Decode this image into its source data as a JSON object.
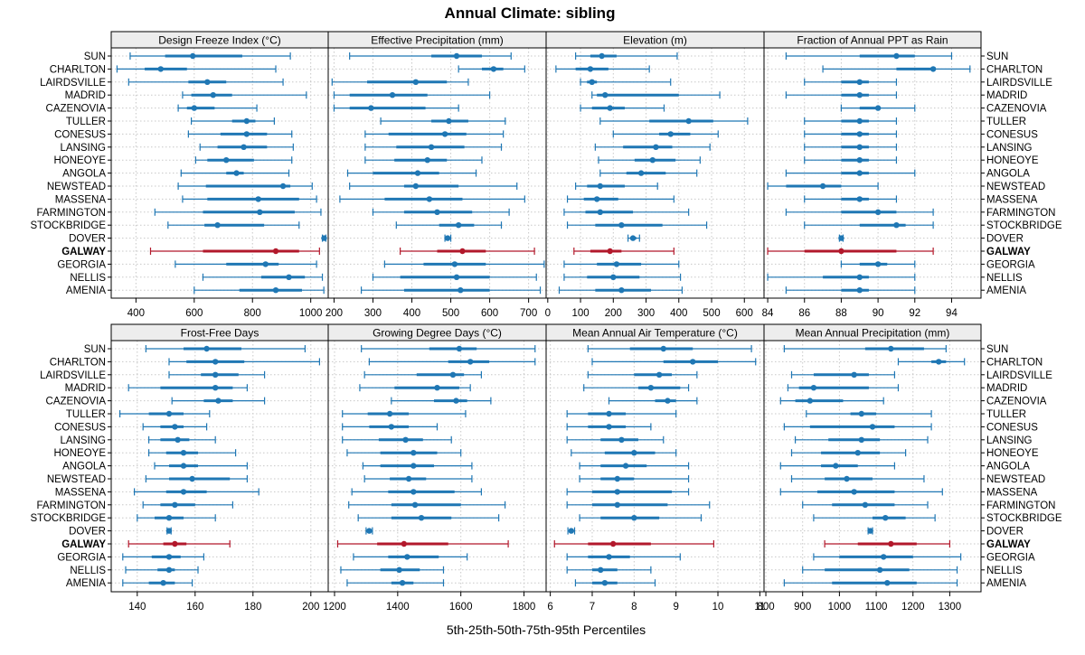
{
  "title": "Annual Climate: sibling",
  "xlabel": "5th-25th-50th-75th-95th Percentiles",
  "colors": {
    "normal": "#1f77b4",
    "highlight": "#b2182b",
    "strip": "#ededed",
    "grid": "#c8c8c8"
  },
  "highlight_site": "GALWAY",
  "sites": [
    "SUN",
    "CHARLTON",
    "LAIRDSVILLE",
    "MADRID",
    "CAZENOVIA",
    "TULLER",
    "CONESUS",
    "LANSING",
    "HONEOYE",
    "ANGOLA",
    "NEWSTEAD",
    "MASSENA",
    "FARMINGTON",
    "STOCKBRIDGE",
    "DOVER",
    "GALWAY",
    "GEORGIA",
    "NELLIS",
    "AMENIA"
  ],
  "chart_data": [
    {
      "type": "boxplot-percentiles",
      "title": "Design Freeze Index (°C)",
      "xlim": [
        315,
        1060
      ],
      "ticks": [
        400,
        600,
        800,
        1000
      ],
      "values": [
        [
          380,
          500,
          595,
          765,
          930
        ],
        [
          335,
          430,
          485,
          575,
          880
        ],
        [
          375,
          580,
          645,
          710,
          905
        ],
        [
          560,
          590,
          665,
          730,
          985
        ],
        [
          545,
          575,
          600,
          670,
          815
        ],
        [
          590,
          730,
          780,
          810,
          875
        ],
        [
          580,
          690,
          780,
          850,
          935
        ],
        [
          620,
          680,
          770,
          850,
          940
        ],
        [
          605,
          645,
          710,
          805,
          935
        ],
        [
          555,
          710,
          745,
          770,
          925
        ],
        [
          545,
          640,
          905,
          930,
          1005
        ],
        [
          560,
          645,
          820,
          960,
          1020
        ],
        [
          465,
          630,
          825,
          945,
          1035
        ],
        [
          510,
          635,
          680,
          840,
          960
        ],
        [
          1040,
          1043,
          1046,
          1049,
          1052
        ],
        [
          450,
          630,
          880,
          960,
          1030
        ],
        [
          535,
          710,
          845,
          890,
          1020
        ],
        [
          630,
          830,
          925,
          980,
          1040
        ],
        [
          600,
          755,
          880,
          970,
          1045
        ]
      ]
    },
    {
      "type": "boxplot-percentiles",
      "title": "Effective Precipitation (mm)",
      "xlim": [
        185,
        745
      ],
      "ticks": [
        200,
        300,
        400,
        500,
        600,
        700
      ],
      "values": [
        [
          240,
          450,
          515,
          580,
          655
        ],
        [
          520,
          580,
          610,
          635,
          690
        ],
        [
          195,
          285,
          410,
          490,
          545
        ],
        [
          200,
          240,
          350,
          440,
          600
        ],
        [
          200,
          240,
          295,
          435,
          520
        ],
        [
          320,
          450,
          495,
          545,
          640
        ],
        [
          280,
          340,
          485,
          540,
          635
        ],
        [
          280,
          360,
          450,
          535,
          630
        ],
        [
          280,
          355,
          440,
          490,
          580
        ],
        [
          235,
          300,
          415,
          470,
          565
        ],
        [
          240,
          380,
          410,
          520,
          670
        ],
        [
          215,
          330,
          445,
          530,
          690
        ],
        [
          300,
          380,
          465,
          555,
          650
        ],
        [
          360,
          470,
          520,
          560,
          630
        ],
        [
          485,
          488,
          492,
          496,
          500
        ],
        [
          370,
          465,
          530,
          590,
          715
        ],
        [
          330,
          430,
          510,
          590,
          740
        ],
        [
          300,
          370,
          515,
          600,
          720
        ],
        [
          270,
          380,
          525,
          600,
          730
        ]
      ]
    },
    {
      "type": "boxplot-percentiles",
      "title": "Elevation (m)",
      "xlim": [
        -5,
        660
      ],
      "ticks": [
        0,
        100,
        200,
        300,
        400,
        500,
        600
      ],
      "values": [
        [
          85,
          130,
          165,
          210,
          395
        ],
        [
          25,
          85,
          130,
          185,
          310
        ],
        [
          100,
          120,
          135,
          150,
          375
        ],
        [
          135,
          150,
          175,
          400,
          525
        ],
        [
          100,
          135,
          190,
          235,
          355
        ],
        [
          160,
          310,
          430,
          505,
          610
        ],
        [
          200,
          340,
          375,
          435,
          520
        ],
        [
          145,
          230,
          330,
          380,
          495
        ],
        [
          155,
          265,
          320,
          390,
          465
        ],
        [
          160,
          240,
          285,
          360,
          455
        ],
        [
          85,
          120,
          160,
          235,
          335
        ],
        [
          60,
          110,
          150,
          215,
          385
        ],
        [
          50,
          115,
          160,
          260,
          430
        ],
        [
          60,
          145,
          225,
          350,
          485
        ],
        [
          245,
          252,
          260,
          270,
          280
        ],
        [
          80,
          130,
          190,
          225,
          385
        ],
        [
          50,
          150,
          210,
          285,
          400
        ],
        [
          50,
          120,
          200,
          280,
          405
        ],
        [
          35,
          145,
          225,
          315,
          410
        ]
      ]
    },
    {
      "type": "boxplot-percentiles",
      "title": "Fraction of Annual PPT as Rain",
      "xlim": [
        83.8,
        95.6
      ],
      "ticks": [
        84,
        86,
        88,
        90,
        92,
        94
      ],
      "values": [
        [
          85,
          89,
          91,
          92,
          94
        ],
        [
          87,
          91,
          93,
          93,
          95
        ],
        [
          86,
          88,
          89,
          89.5,
          91
        ],
        [
          85,
          88,
          89,
          89.5,
          91
        ],
        [
          88,
          89,
          90,
          90,
          92
        ],
        [
          86,
          88,
          89,
          89.5,
          91
        ],
        [
          86,
          88,
          89,
          89.5,
          91
        ],
        [
          86,
          88,
          89,
          89.5,
          91
        ],
        [
          86,
          88,
          89,
          89.5,
          91
        ],
        [
          85,
          88,
          89,
          89.5,
          92
        ],
        [
          84,
          85,
          87,
          88,
          90
        ],
        [
          86,
          88,
          89,
          89.5,
          91
        ],
        [
          85,
          88,
          90,
          91,
          93
        ],
        [
          86,
          89,
          91,
          91.5,
          93
        ],
        [
          87.9,
          87.95,
          88,
          88.05,
          88.1
        ],
        [
          84,
          86,
          88,
          91,
          93
        ],
        [
          88,
          89,
          90,
          90.5,
          92
        ],
        [
          84,
          87,
          89,
          89.5,
          92
        ],
        [
          85,
          88,
          89,
          89.5,
          92
        ]
      ]
    },
    {
      "type": "boxplot-percentiles",
      "title": "Frost-Free Days",
      "xlim": [
        131,
        206
      ],
      "ticks": [
        140,
        160,
        180,
        200
      ],
      "values": [
        [
          143,
          156,
          164,
          176,
          198
        ],
        [
          151,
          157,
          167,
          177,
          203
        ],
        [
          151,
          162,
          167,
          175,
          184
        ],
        [
          137,
          148,
          167,
          173,
          178
        ],
        [
          152,
          163,
          168,
          173,
          184
        ],
        [
          134,
          144,
          151,
          156,
          165
        ],
        [
          142,
          148,
          153,
          156,
          164
        ],
        [
          144,
          148,
          154,
          158,
          167
        ],
        [
          144,
          150,
          156,
          161,
          174
        ],
        [
          146,
          151,
          156,
          161,
          178
        ],
        [
          143,
          151,
          159,
          172,
          178
        ],
        [
          139,
          150,
          156,
          164,
          182
        ],
        [
          142,
          148,
          153,
          160,
          173
        ],
        [
          140,
          146,
          151,
          156,
          167
        ],
        [
          150.3,
          150.6,
          151,
          151.4,
          151.7
        ],
        [
          137,
          149,
          153,
          157,
          172
        ],
        [
          135,
          145,
          151,
          155,
          163
        ],
        [
          136,
          147,
          151,
          153,
          161
        ],
        [
          135,
          144,
          149,
          153,
          159
        ]
      ]
    },
    {
      "type": "boxplot-percentiles",
      "title": "Growing Degree Days (°C)",
      "xlim": [
        1180,
        1870
      ],
      "ticks": [
        1200,
        1400,
        1600,
        1800
      ],
      "values": [
        [
          1285,
          1500,
          1595,
          1650,
          1835
        ],
        [
          1310,
          1560,
          1630,
          1690,
          1835
        ],
        [
          1295,
          1460,
          1575,
          1610,
          1665
        ],
        [
          1280,
          1390,
          1525,
          1595,
          1630
        ],
        [
          1380,
          1515,
          1585,
          1620,
          1695
        ],
        [
          1225,
          1305,
          1375,
          1435,
          1615
        ],
        [
          1225,
          1310,
          1380,
          1435,
          1525
        ],
        [
          1225,
          1340,
          1425,
          1480,
          1570
        ],
        [
          1240,
          1345,
          1450,
          1525,
          1600
        ],
        [
          1290,
          1345,
          1450,
          1515,
          1635
        ],
        [
          1295,
          1375,
          1435,
          1490,
          1635
        ],
        [
          1255,
          1370,
          1450,
          1580,
          1665
        ],
        [
          1245,
          1380,
          1455,
          1600,
          1740
        ],
        [
          1275,
          1380,
          1475,
          1570,
          1720
        ],
        [
          1300,
          1305,
          1310,
          1315,
          1320
        ],
        [
          1210,
          1335,
          1420,
          1560,
          1750
        ],
        [
          1260,
          1370,
          1430,
          1530,
          1620
        ],
        [
          1220,
          1345,
          1405,
          1470,
          1545
        ],
        [
          1240,
          1380,
          1415,
          1450,
          1545
        ]
      ]
    },
    {
      "type": "boxplot-percentiles",
      "title": "Mean Annual Air Temperature (°C)",
      "xlim": [
        5.9,
        11.1
      ],
      "ticks": [
        6,
        7,
        8,
        9,
        10,
        11
      ],
      "values": [
        [
          6.9,
          7.9,
          8.7,
          9.4,
          10.8
        ],
        [
          7.0,
          8.7,
          9.4,
          10.0,
          10.9
        ],
        [
          6.9,
          8.0,
          8.6,
          8.9,
          9.5
        ],
        [
          6.8,
          8.1,
          8.4,
          9.1,
          9.3
        ],
        [
          7.4,
          8.5,
          8.8,
          9.0,
          9.5
        ],
        [
          6.4,
          6.9,
          7.4,
          7.8,
          9.0
        ],
        [
          6.4,
          6.9,
          7.4,
          7.8,
          8.4
        ],
        [
          6.4,
          7.2,
          7.7,
          8.1,
          8.7
        ],
        [
          6.5,
          7.3,
          8.0,
          8.5,
          9.0
        ],
        [
          6.7,
          7.2,
          7.8,
          8.3,
          9.3
        ],
        [
          6.7,
          7.2,
          7.6,
          8.0,
          9.3
        ],
        [
          6.4,
          7.0,
          7.6,
          8.9,
          9.3
        ],
        [
          6.4,
          7.0,
          7.6,
          8.8,
          9.8
        ],
        [
          6.7,
          7.2,
          8.0,
          8.6,
          9.6
        ],
        [
          6.42,
          6.46,
          6.5,
          6.54,
          6.58
        ],
        [
          6.1,
          6.9,
          7.5,
          8.4,
          9.9
        ],
        [
          6.4,
          6.9,
          7.4,
          7.9,
          9.1
        ],
        [
          6.4,
          7.0,
          7.2,
          7.6,
          8.4
        ],
        [
          6.6,
          7.0,
          7.3,
          7.6,
          8.5
        ]
      ]
    },
    {
      "type": "boxplot-percentiles",
      "title": "Mean Annual Precipitation (mm)",
      "xlim": [
        795,
        1385
      ],
      "ticks": [
        800,
        900,
        1000,
        1100,
        1200,
        1300
      ],
      "values": [
        [
          850,
          1070,
          1140,
          1230,
          1290
        ],
        [
          1160,
          1250,
          1270,
          1290,
          1340
        ],
        [
          870,
          930,
          1040,
          1080,
          1150
        ],
        [
          860,
          890,
          930,
          1080,
          1160
        ],
        [
          840,
          880,
          920,
          1010,
          1120
        ],
        [
          910,
          1030,
          1060,
          1100,
          1250
        ],
        [
          850,
          920,
          1090,
          1150,
          1250
        ],
        [
          880,
          970,
          1060,
          1110,
          1240
        ],
        [
          870,
          950,
          1050,
          1110,
          1180
        ],
        [
          840,
          950,
          990,
          1050,
          1150
        ],
        [
          870,
          960,
          1020,
          1090,
          1230
        ],
        [
          840,
          940,
          1040,
          1150,
          1280
        ],
        [
          900,
          980,
          1070,
          1150,
          1240
        ],
        [
          930,
          1090,
          1125,
          1180,
          1260
        ],
        [
          1078,
          1081,
          1084,
          1087,
          1090
        ],
        [
          960,
          1050,
          1140,
          1210,
          1300
        ],
        [
          930,
          1000,
          1120,
          1200,
          1330
        ],
        [
          900,
          960,
          1110,
          1190,
          1320
        ],
        [
          850,
          980,
          1130,
          1210,
          1320
        ]
      ]
    }
  ]
}
